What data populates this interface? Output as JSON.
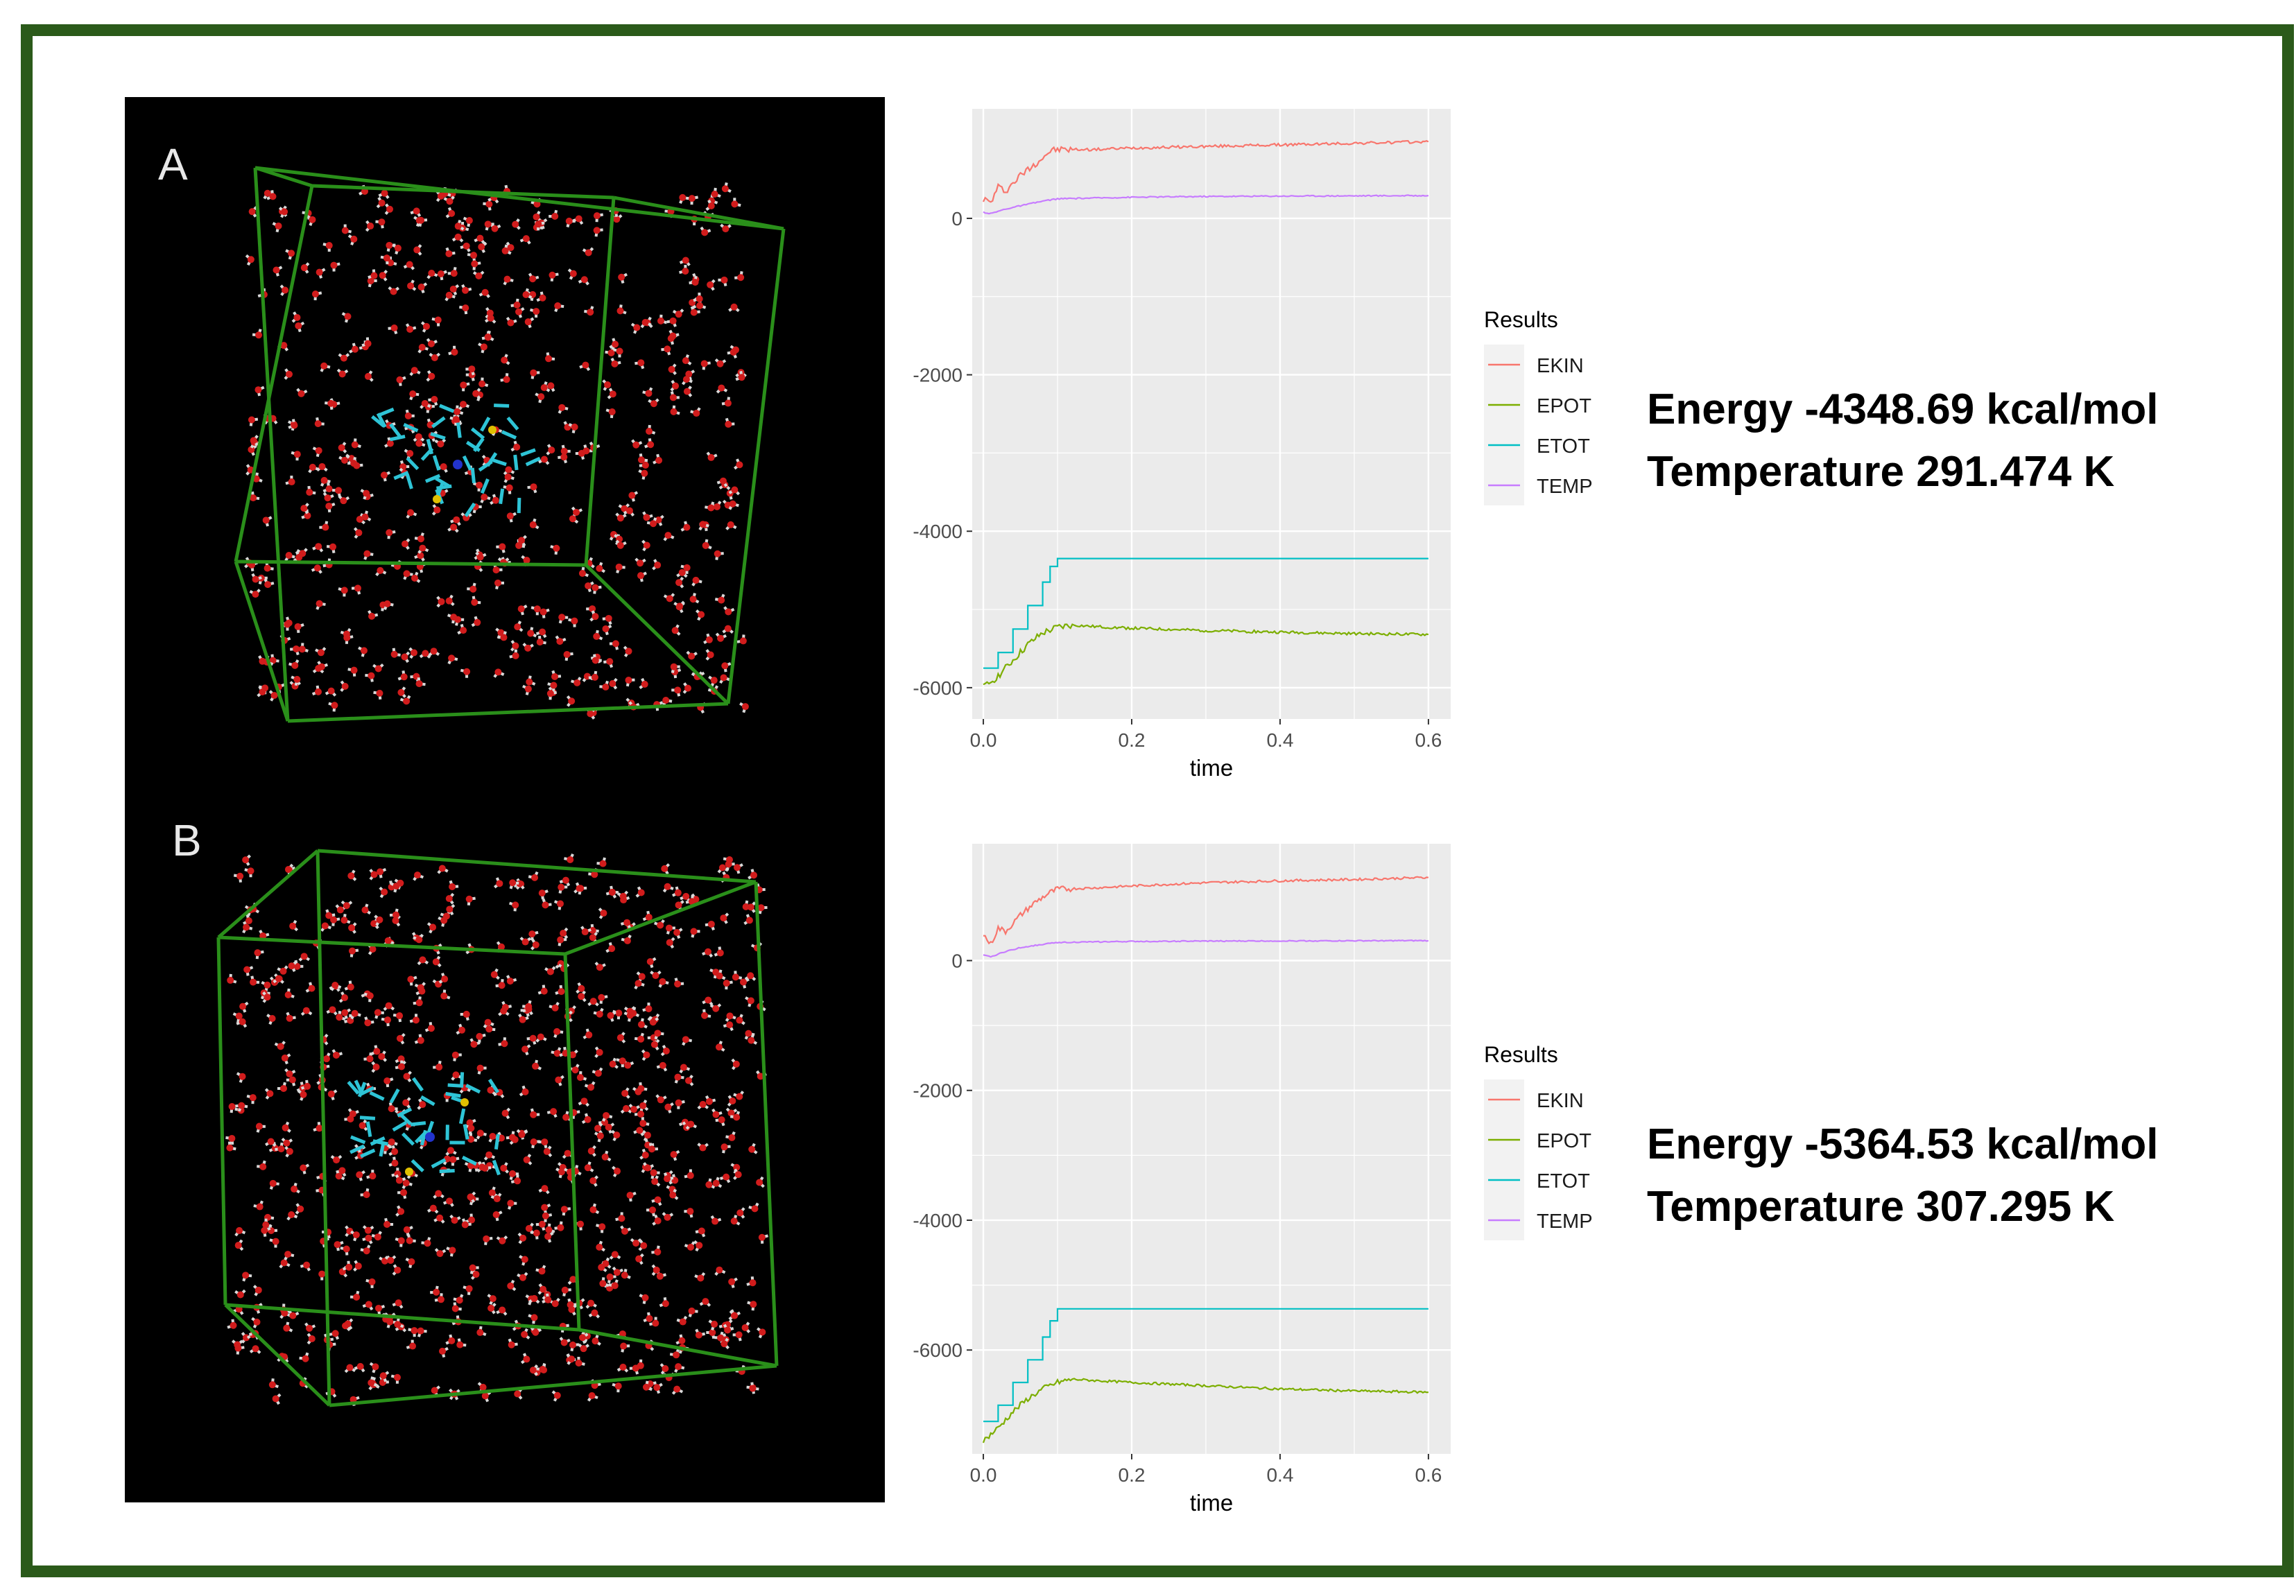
{
  "molecule_panels": [
    {
      "label": "A"
    },
    {
      "label": "B"
    }
  ],
  "results": [
    {
      "energy_text": "Energy -4348.69 kcal/mol",
      "temperature_text": "Temperature 291.474 K"
    },
    {
      "energy_text": "Energy -5364.53 kcal/mol",
      "temperature_text": "Temperature 307.295 K"
    }
  ],
  "colors": {
    "EKIN": "#f8766d",
    "EPOT": "#7cae00",
    "ETOT": "#00bfc4",
    "TEMP": "#c77cff",
    "frame": "#2b5a1a",
    "panel_bg": "#ebebeb"
  },
  "chart_data": [
    {
      "type": "line",
      "xlabel": "time",
      "ylabel": "",
      "xlim": [
        -0.015,
        0.63
      ],
      "ylim": [
        -6400,
        1400
      ],
      "xticks": [
        0.0,
        0.2,
        0.4,
        0.6
      ],
      "xtick_labels": [
        "0.0",
        "0.2",
        "0.4",
        "0.6"
      ],
      "yticks": [
        0,
        -2000,
        -4000,
        -6000
      ],
      "ytick_labels": [
        "0",
        "-2000",
        "-4000",
        "-6000"
      ],
      "grid": true,
      "legend_title": "Results",
      "legend_position": "right",
      "series": [
        {
          "name": "EKIN",
          "x": [
            0.0,
            0.01,
            0.02,
            0.03,
            0.05,
            0.07,
            0.09,
            0.1,
            0.15,
            0.2,
            0.3,
            0.4,
            0.5,
            0.6
          ],
          "y": [
            250,
            200,
            400,
            350,
            550,
            700,
            860,
            880,
            880,
            900,
            920,
            940,
            960,
            980
          ]
        },
        {
          "name": "EPOT",
          "x": [
            0.0,
            0.02,
            0.04,
            0.06,
            0.08,
            0.1,
            0.12,
            0.15,
            0.2,
            0.3,
            0.4,
            0.5,
            0.6
          ],
          "y": [
            -6000,
            -5850,
            -5650,
            -5450,
            -5300,
            -5230,
            -5200,
            -5220,
            -5240,
            -5270,
            -5290,
            -5310,
            -5320
          ]
        },
        {
          "name": "ETOT",
          "x": [
            0.0,
            0.02,
            0.04,
            0.06,
            0.08,
            0.09,
            0.1,
            0.6
          ],
          "y": [
            -5750,
            -5550,
            -5250,
            -4950,
            -4650,
            -4450,
            -4349,
            -4349
          ]
        },
        {
          "name": "TEMP",
          "x": [
            0.0,
            0.01,
            0.03,
            0.05,
            0.08,
            0.1,
            0.2,
            0.3,
            0.4,
            0.5,
            0.6
          ],
          "y": [
            80,
            60,
            120,
            160,
            220,
            250,
            270,
            280,
            285,
            288,
            291
          ]
        }
      ]
    },
    {
      "type": "line",
      "xlabel": "time",
      "ylabel": "",
      "xlim": [
        -0.015,
        0.63
      ],
      "ylim": [
        -7600,
        1800
      ],
      "xticks": [
        0.0,
        0.2,
        0.4,
        0.6
      ],
      "xtick_labels": [
        "0.0",
        "0.2",
        "0.4",
        "0.6"
      ],
      "yticks": [
        0,
        -2000,
        -4000,
        -6000
      ],
      "ytick_labels": [
        "0",
        "-2000",
        "-4000",
        "-6000"
      ],
      "grid": true,
      "legend_title": "Results",
      "legend_position": "right",
      "series": [
        {
          "name": "EKIN",
          "x": [
            0.0,
            0.01,
            0.02,
            0.03,
            0.05,
            0.07,
            0.09,
            0.1,
            0.15,
            0.2,
            0.3,
            0.4,
            0.5,
            0.6
          ],
          "y": [
            400,
            250,
            500,
            450,
            700,
            900,
            1050,
            1100,
            1120,
            1150,
            1200,
            1230,
            1250,
            1280
          ]
        },
        {
          "name": "EPOT",
          "x": [
            0.0,
            0.02,
            0.04,
            0.06,
            0.08,
            0.1,
            0.12,
            0.15,
            0.2,
            0.3,
            0.4,
            0.5,
            0.6
          ],
          "y": [
            -7400,
            -7200,
            -6950,
            -6750,
            -6600,
            -6500,
            -6450,
            -6470,
            -6500,
            -6550,
            -6600,
            -6630,
            -6650
          ]
        },
        {
          "name": "ETOT",
          "x": [
            0.0,
            0.02,
            0.04,
            0.06,
            0.08,
            0.09,
            0.1,
            0.6
          ],
          "y": [
            -7100,
            -6850,
            -6500,
            -6150,
            -5800,
            -5550,
            -5365,
            -5365
          ]
        },
        {
          "name": "TEMP",
          "x": [
            0.0,
            0.01,
            0.03,
            0.05,
            0.08,
            0.1,
            0.2,
            0.3,
            0.4,
            0.5,
            0.6
          ],
          "y": [
            80,
            60,
            140,
            200,
            250,
            280,
            295,
            300,
            303,
            305,
            307
          ]
        }
      ]
    }
  ]
}
